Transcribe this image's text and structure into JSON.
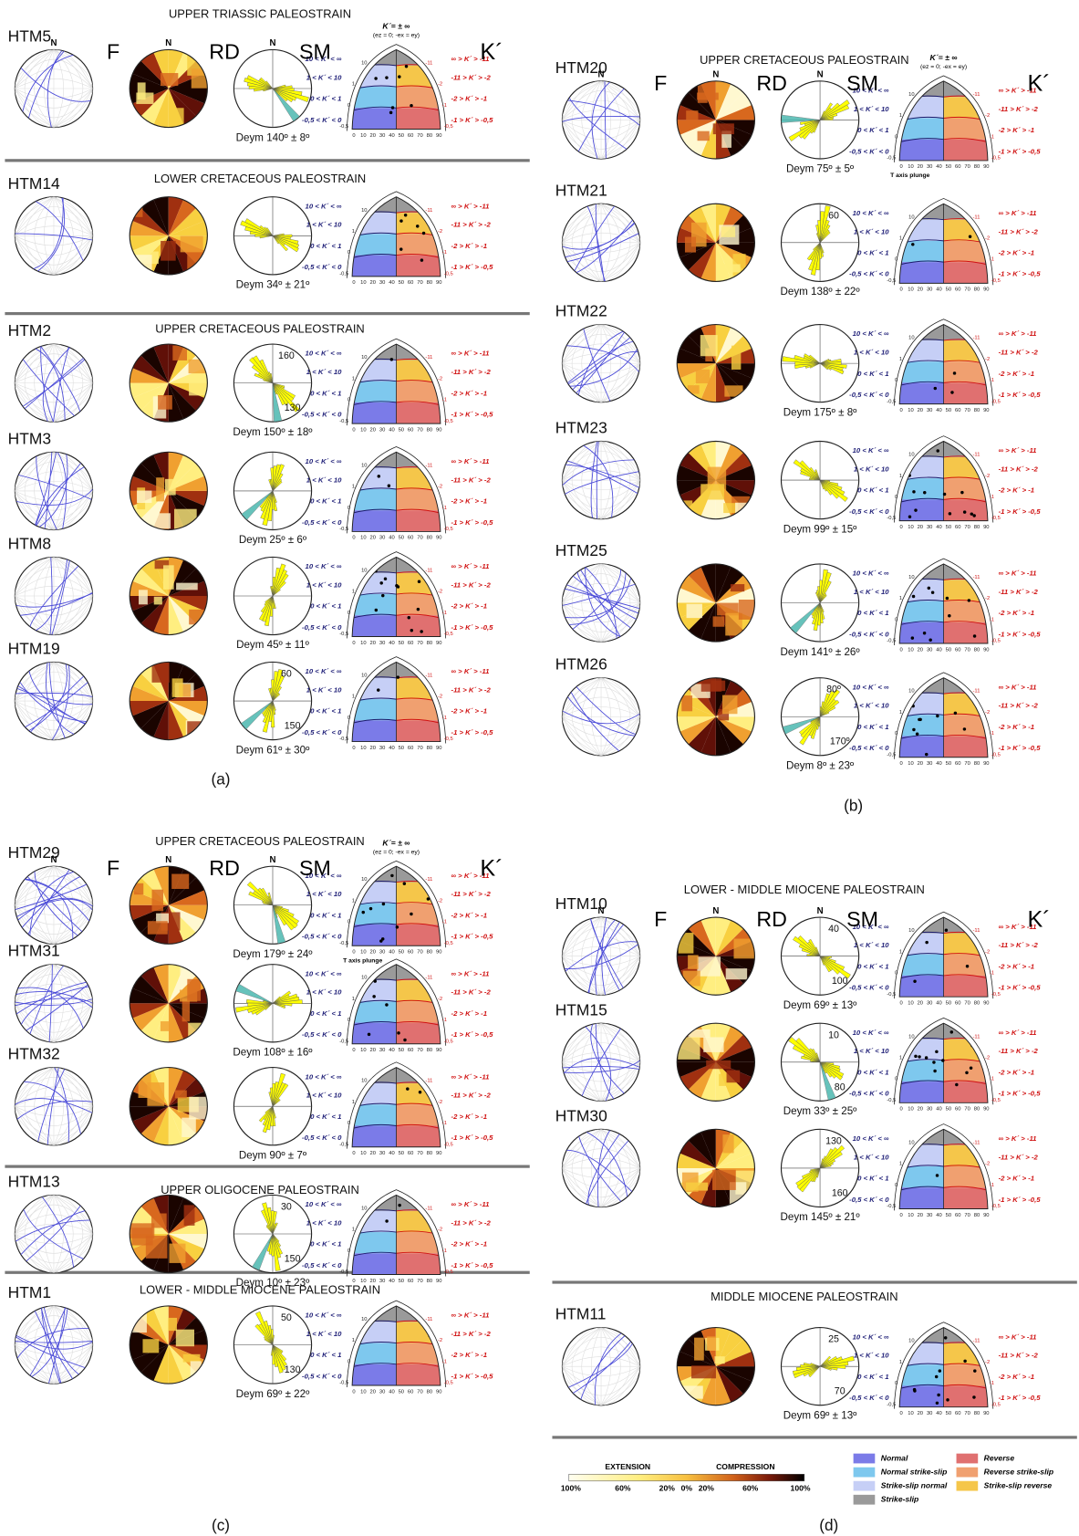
{
  "panel_labels": [
    "(a)",
    "(b)",
    "(c)",
    "(d)"
  ],
  "column_heads": {
    "north": "N",
    "F": "F",
    "RD": "RD",
    "SM": "SM",
    "K": "K´"
  },
  "kprime": {
    "header": "K´= ± ∞",
    "header_sub": "(ez = 0; -ex = ey)",
    "axis_label": "T axis plunge",
    "left": [
      "10 < K´ < ∞",
      "1 < K´ < 10",
      "0 < K´ < 1",
      "-0,5 < K´ < 0"
    ],
    "right": [
      "∞ > K´ > -11",
      "-11 > K´ > -2",
      "-2 > K´ > -1",
      "-1 > K´ > -0,5"
    ],
    "left_ticks": [
      "10",
      "1",
      "0",
      "-0,5"
    ],
    "right_ticks": [
      "-11",
      "-2",
      "-1",
      "-0,5"
    ],
    "x_ticks": [
      0,
      10,
      20,
      30,
      40,
      50,
      60,
      70,
      80,
      90
    ],
    "left_colors": [
      "#9a9a9a",
      "#c6cff6",
      "#7ec8ee",
      "#7b7be8"
    ],
    "right_colors": [
      "#9a9a9a",
      "#f5c64a",
      "#f0a070",
      "#e07070"
    ]
  },
  "panels": [
    {
      "sections": [
        {
          "title": "UPPER TRIASSIC PALEOSTRAIN",
          "stations": [
            {
              "name": "HTM5",
              "deym": "Deym 140º ± 8º",
              "rose_labels": []
            }
          ]
        },
        {
          "title": "LOWER CRETACEOUS PALEOSTRAIN",
          "stations": [
            {
              "name": "HTM14",
              "deym": "Deym 34º ± 21º",
              "rose_labels": []
            }
          ]
        },
        {
          "title": "UPPER CRETACEOUS PALEOSTRAIN",
          "stations": [
            {
              "name": "HTM2",
              "deym": "Deym 150º ± 18º",
              "rose_labels": [
                "160",
                "130"
              ]
            },
            {
              "name": "HTM3",
              "deym": "Deym 25º ± 6º",
              "rose_labels": []
            },
            {
              "name": "HTM8",
              "deym": "Deym 45º ± 11º",
              "rose_labels": []
            },
            {
              "name": "HTM19",
              "deym": "Deym 61º ± 30º",
              "rose_labels": [
                "60",
                "150"
              ]
            }
          ]
        }
      ]
    },
    {
      "sections": [
        {
          "title": "UPPER CRETACEOUS PALEOSTRAIN",
          "stations": [
            {
              "name": "HTM20",
              "deym": "Deym 75º ± 5º",
              "rose_labels": []
            },
            {
              "name": "HTM21",
              "deym": "Deym 138º ± 22º",
              "rose_labels": [
                "60"
              ]
            },
            {
              "name": "HTM22",
              "deym": "Deym 175º ± 8º",
              "rose_labels": []
            },
            {
              "name": "HTM23",
              "deym": "Deym 99º ± 15º",
              "rose_labels": []
            },
            {
              "name": "HTM25",
              "deym": "Deym 141º ± 26º",
              "rose_labels": []
            },
            {
              "name": "HTM26",
              "deym": "Deym 8º ± 23º",
              "rose_labels": [
                "80º",
                "170º"
              ]
            }
          ]
        }
      ]
    },
    {
      "sections": [
        {
          "title": "UPPER CRETACEOUS PALEOSTRAIN",
          "stations": [
            {
              "name": "HTM29",
              "deym": "Deym 179º ± 24º",
              "rose_labels": []
            },
            {
              "name": "HTM31",
              "deym": "Deym 108º ± 16º",
              "rose_labels": []
            },
            {
              "name": "HTM32",
              "deym": "Deym 90º ± 7º",
              "rose_labels": []
            }
          ]
        },
        {
          "title": "UPPER OLIGOCENE PALEOSTRAIN",
          "stations": [
            {
              "name": "HTM13",
              "deym": "Deym 10º ± 23º",
              "rose_labels": [
                "30",
                "150"
              ]
            }
          ]
        },
        {
          "title": "LOWER - MIDDLE MIOCENE PALEOSTRAIN",
          "stations": [
            {
              "name": "HTM1",
              "deym": "Deym 69º ± 22º",
              "rose_labels": [
                "50",
                "130"
              ]
            }
          ]
        }
      ]
    },
    {
      "sections": [
        {
          "title": "LOWER - MIDDLE MIOCENE PALEOSTRAIN",
          "stations": [
            {
              "name": "HTM10",
              "deym": "Deym 69º ± 13º",
              "rose_labels": [
                "40",
                "100"
              ]
            },
            {
              "name": "HTM15",
              "deym": "Deym 33º ± 25º",
              "rose_labels": [
                "10",
                "80"
              ]
            },
            {
              "name": "HTM30",
              "deym": "Deym 145º ± 21º",
              "rose_labels": [
                "130",
                "160"
              ]
            }
          ]
        },
        {
          "title": "MIDDLE MIOCENE PALEOSTRAIN",
          "stations": [
            {
              "name": "HTM11",
              "deym": "Deym 69º ± 13º",
              "rose_labels": [
                "25",
                "70"
              ]
            }
          ]
        }
      ]
    }
  ],
  "legend": {
    "extension": "EXTENSION",
    "compression": "COMPRESSION",
    "scale": [
      "100%",
      "60%",
      "20%",
      "0%",
      "20%",
      "60%",
      "100%"
    ],
    "types": [
      {
        "name": "Normal",
        "color": "#7b7be8"
      },
      {
        "name": "Normal strike-slip",
        "color": "#7ec8ee"
      },
      {
        "name": "Strike-slip normal",
        "color": "#c6cff6"
      },
      {
        "name": "Strike-slip",
        "color": "#9a9a9a"
      },
      {
        "name": "Reverse",
        "color": "#e07070"
      },
      {
        "name": "Reverse strike-slip",
        "color": "#f0a070"
      },
      {
        "name": "Strike-slip reverse",
        "color": "#f5c64a"
      }
    ]
  }
}
